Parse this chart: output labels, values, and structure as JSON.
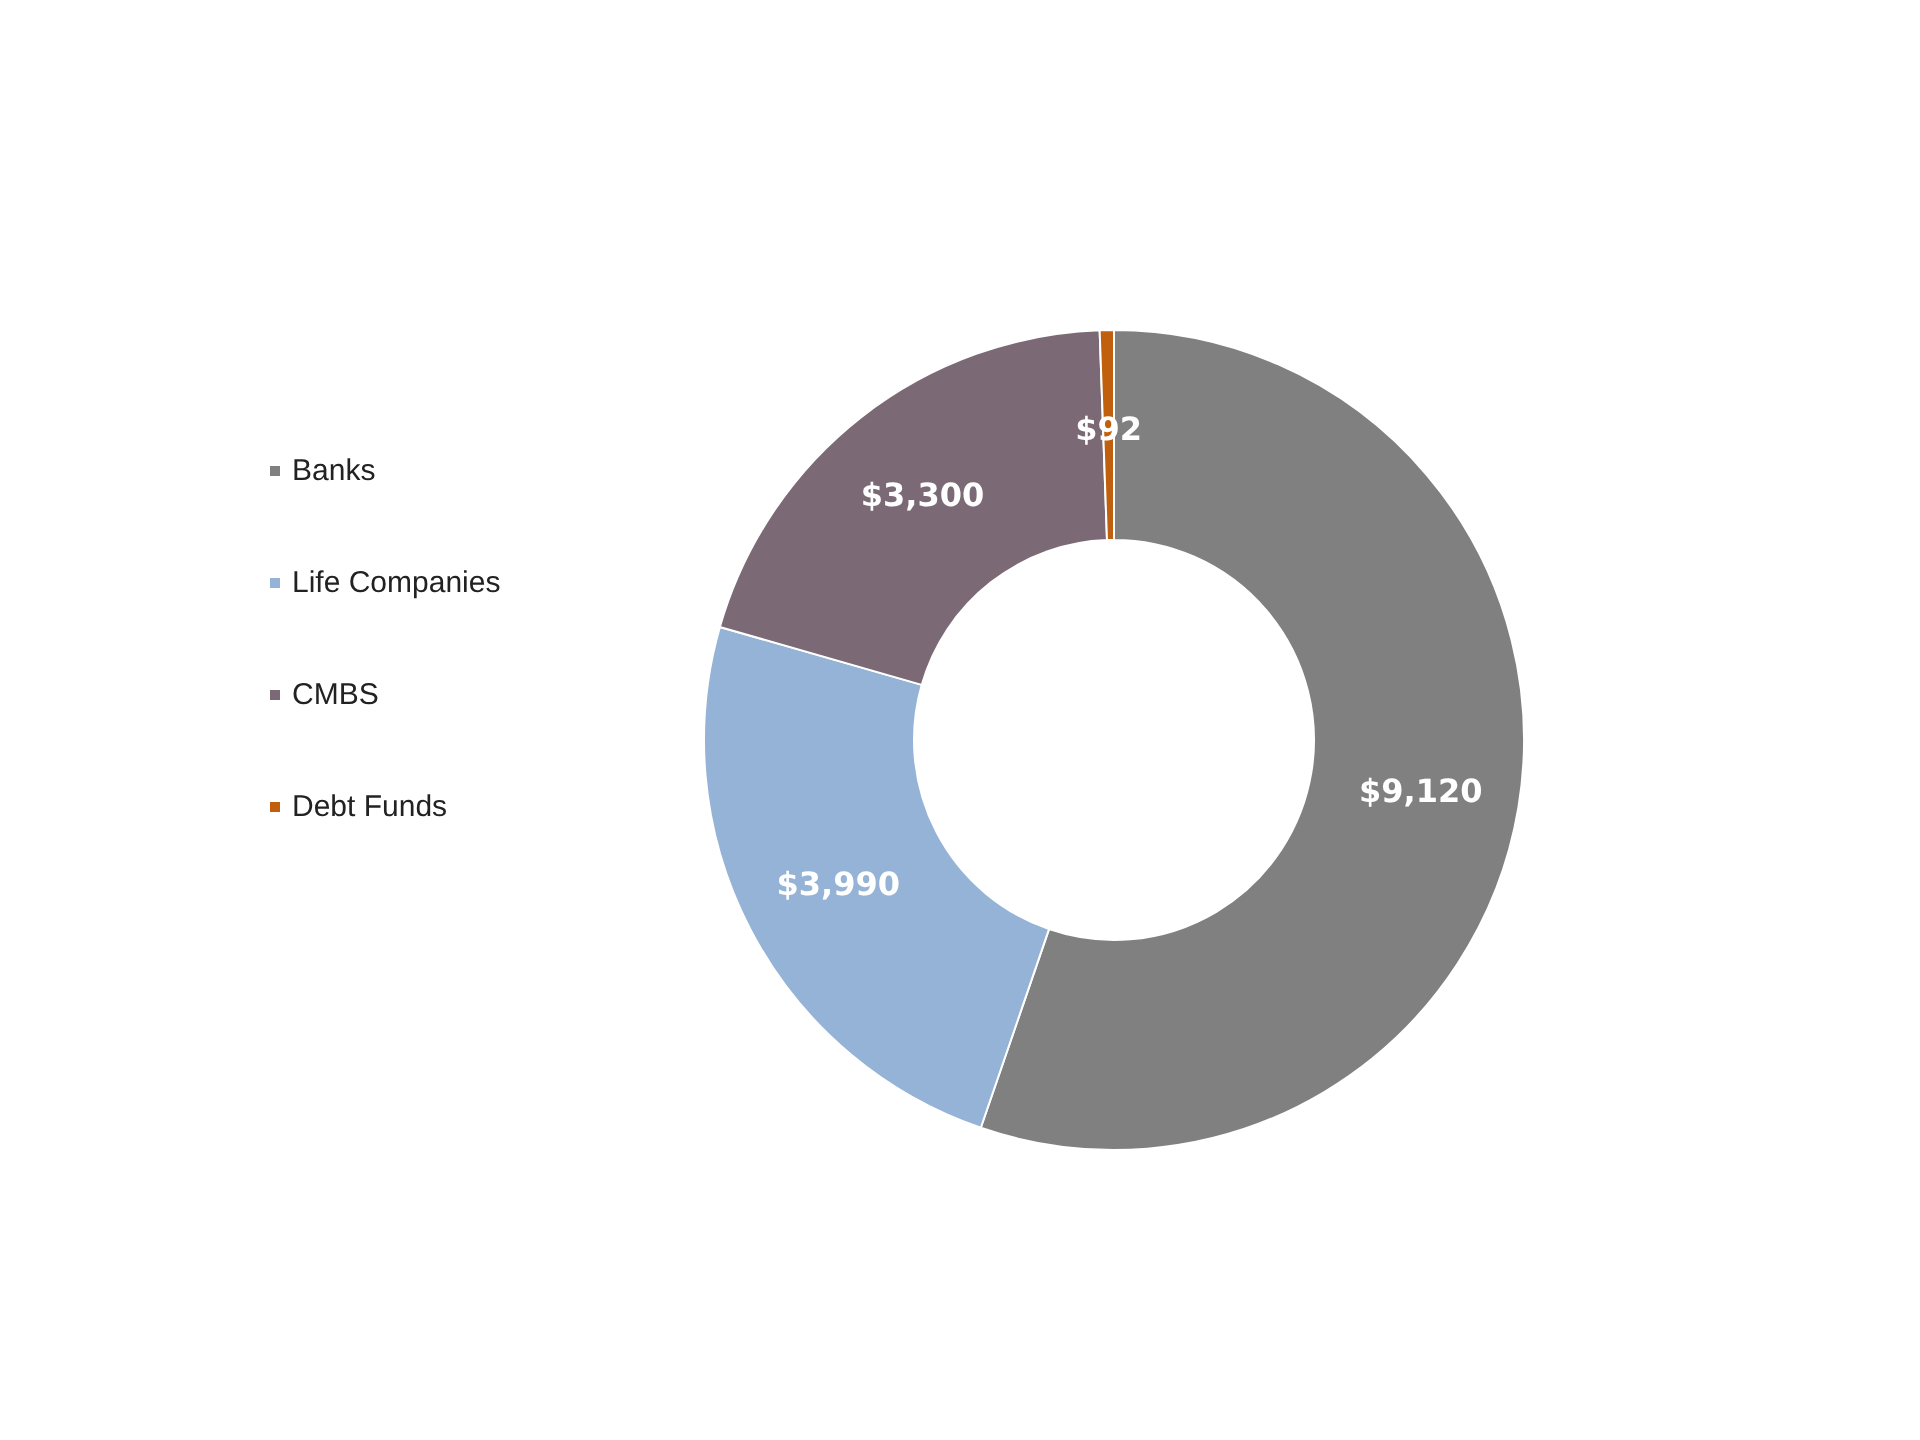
{
  "chart_data": {
    "type": "donut",
    "categories": [
      "Banks",
      "Life Companies",
      "CMBS",
      "Debt Funds"
    ],
    "values": [
      9120,
      3990,
      3300,
      92
    ],
    "colors": [
      "#808080",
      "#95b3d7",
      "#7b6a75",
      "#c0600e"
    ],
    "value_labels": [
      "$9,120",
      "$3,990",
      "$3,300",
      "$92"
    ],
    "legend": "left"
  }
}
